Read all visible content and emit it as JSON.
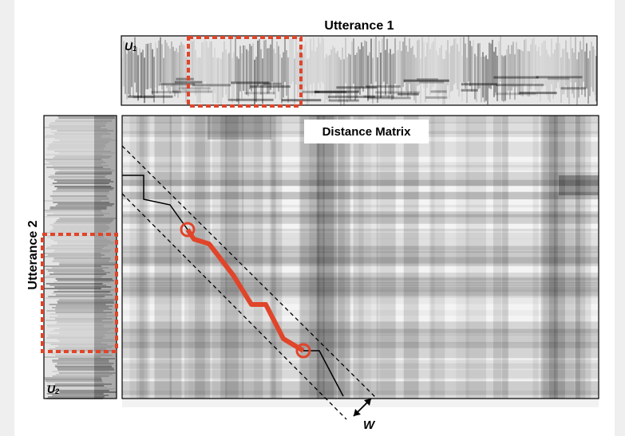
{
  "top_panel": {
    "title": "Utterance 1",
    "label": {
      "base": "U",
      "subscript": "1"
    }
  },
  "left_panel": {
    "title": "Utterance 2",
    "label": {
      "base": "U",
      "subscript": "2"
    }
  },
  "matrix": {
    "title": "Distance Matrix",
    "window_label": "W"
  }
}
